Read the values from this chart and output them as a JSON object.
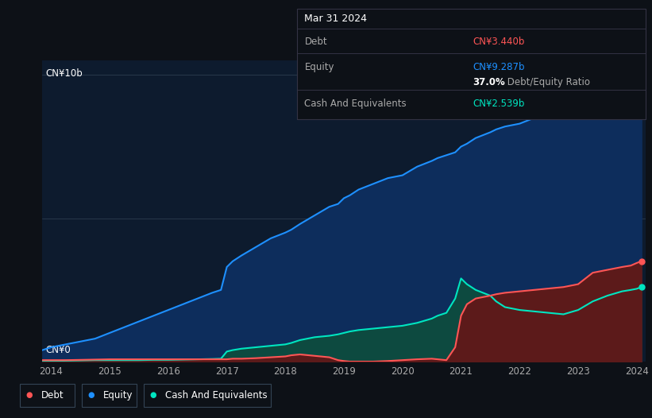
{
  "background_color": "#0d1117",
  "chart_bg": "#0d1b2e",
  "ylabel_top": "CN¥10b",
  "ylabel_bottom": "CN¥0",
  "x_ticks": [
    2014,
    2015,
    2016,
    2017,
    2018,
    2019,
    2020,
    2021,
    2022,
    2023,
    2024
  ],
  "ylim": [
    0,
    10.5
  ],
  "equity_line_color": "#1e90ff",
  "debt_line_color": "#ff5555",
  "cash_line_color": "#00e5c0",
  "equity_fill_color": "#0d2d5c",
  "debt_fill_color": "#5c1a1a",
  "cash_fill_color": "#0d4a40",
  "tooltip_bg": "#0d1117",
  "tooltip_border": "#333344",
  "tooltip_title": "Mar 31 2024",
  "tooltip_debt_label": "Debt",
  "tooltip_debt_value": "CN¥3.440b",
  "tooltip_debt_color": "#ff5555",
  "tooltip_equity_label": "Equity",
  "tooltip_equity_value": "CN¥9.287b",
  "tooltip_equity_color": "#1e90ff",
  "tooltip_ratio_bold": "37.0%",
  "tooltip_ratio_rest": " Debt/Equity Ratio",
  "tooltip_cash_label": "Cash And Equivalents",
  "tooltip_cash_value": "CN¥2.539b",
  "tooltip_cash_color": "#00e5c0",
  "legend_items": [
    {
      "label": "Debt",
      "color": "#ff5555"
    },
    {
      "label": "Equity",
      "color": "#1e90ff"
    },
    {
      "label": "Cash And Equivalents",
      "color": "#00e5c0"
    }
  ],
  "years": [
    2013.85,
    2014.0,
    2014.25,
    2014.5,
    2014.75,
    2015.0,
    2015.25,
    2015.5,
    2015.75,
    2016.0,
    2016.25,
    2016.5,
    2016.75,
    2016.9,
    2017.0,
    2017.1,
    2017.25,
    2017.5,
    2017.75,
    2018.0,
    2018.1,
    2018.25,
    2018.5,
    2018.75,
    2018.9,
    2019.0,
    2019.1,
    2019.25,
    2019.5,
    2019.75,
    2020.0,
    2020.25,
    2020.5,
    2020.6,
    2020.75,
    2020.9,
    2021.0,
    2021.1,
    2021.25,
    2021.5,
    2021.6,
    2021.75,
    2022.0,
    2022.25,
    2022.5,
    2022.75,
    2023.0,
    2023.25,
    2023.5,
    2023.75,
    2023.9,
    2024.0,
    2024.08
  ],
  "equity": [
    0.4,
    0.5,
    0.6,
    0.7,
    0.8,
    1.0,
    1.2,
    1.4,
    1.6,
    1.8,
    2.0,
    2.2,
    2.4,
    2.5,
    3.3,
    3.5,
    3.7,
    4.0,
    4.3,
    4.5,
    4.6,
    4.8,
    5.1,
    5.4,
    5.5,
    5.7,
    5.8,
    6.0,
    6.2,
    6.4,
    6.5,
    6.8,
    7.0,
    7.1,
    7.2,
    7.3,
    7.5,
    7.6,
    7.8,
    8.0,
    8.1,
    8.2,
    8.3,
    8.5,
    8.6,
    8.7,
    8.8,
    9.0,
    9.1,
    9.15,
    9.2,
    9.287,
    9.35
  ],
  "debt": [
    0.05,
    0.05,
    0.05,
    0.06,
    0.07,
    0.08,
    0.08,
    0.08,
    0.08,
    0.08,
    0.08,
    0.08,
    0.08,
    0.08,
    0.08,
    0.1,
    0.1,
    0.12,
    0.15,
    0.18,
    0.22,
    0.25,
    0.2,
    0.15,
    0.05,
    0.02,
    0.0,
    0.0,
    0.0,
    0.02,
    0.05,
    0.08,
    0.1,
    0.08,
    0.05,
    0.5,
    1.6,
    2.0,
    2.2,
    2.3,
    2.35,
    2.4,
    2.45,
    2.5,
    2.55,
    2.6,
    2.7,
    3.1,
    3.2,
    3.3,
    3.35,
    3.44,
    3.5
  ],
  "cash": [
    0.02,
    0.02,
    0.03,
    0.04,
    0.05,
    0.05,
    0.05,
    0.05,
    0.06,
    0.06,
    0.07,
    0.08,
    0.09,
    0.1,
    0.35,
    0.4,
    0.45,
    0.5,
    0.55,
    0.6,
    0.65,
    0.75,
    0.85,
    0.9,
    0.95,
    1.0,
    1.05,
    1.1,
    1.15,
    1.2,
    1.25,
    1.35,
    1.5,
    1.6,
    1.7,
    2.2,
    2.9,
    2.7,
    2.5,
    2.3,
    2.1,
    1.9,
    1.8,
    1.75,
    1.7,
    1.65,
    1.8,
    2.1,
    2.3,
    2.45,
    2.5,
    2.539,
    2.6
  ]
}
